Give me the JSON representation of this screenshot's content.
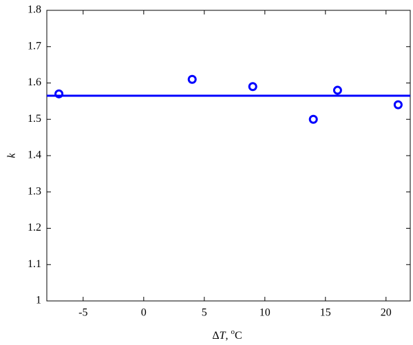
{
  "chart_data": {
    "type": "scatter",
    "x_label": [
      "Δ",
      "T",
      ", ",
      "o",
      "C"
    ],
    "y_label": "k",
    "x": [
      -7,
      4,
      9,
      14,
      16,
      21
    ],
    "series": [
      {
        "color": "#0000ff",
        "values": [
          1.57,
          1.61,
          1.59,
          1.5,
          1.58,
          1.54
        ]
      }
    ],
    "fit_line": {
      "value": 1.565,
      "color": "#0000ff"
    },
    "xlim": [
      -8,
      22
    ],
    "xticks": [
      -5,
      0,
      5,
      10,
      15,
      20
    ],
    "ylim": [
      1,
      1.8
    ],
    "yticks": [
      1,
      1.1,
      1.2,
      1.3,
      1.4,
      1.5,
      1.6,
      1.7,
      1.8
    ],
    "grid": false
  }
}
